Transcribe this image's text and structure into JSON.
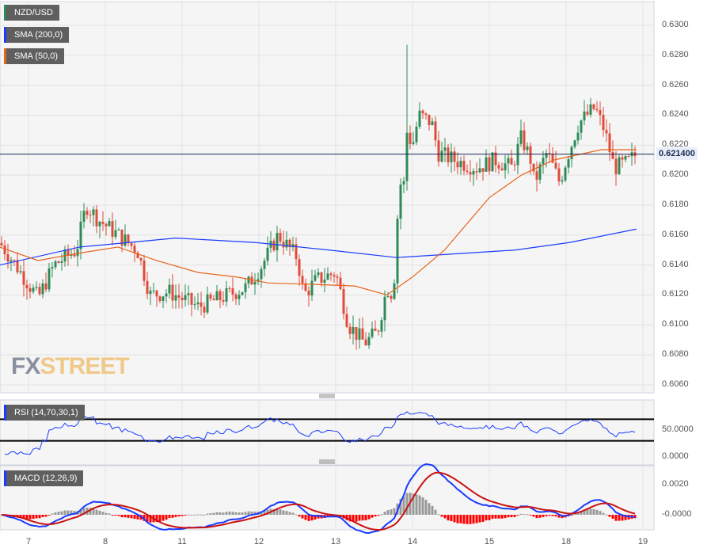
{
  "legend": {
    "pair": "NZD/USD",
    "sma200": "SMA (200,0)",
    "sma50": "SMA (50,0)",
    "rsi": "RSI (14,70,30,1)",
    "macd": "MACD (12,26,9)"
  },
  "colors": {
    "pair": "#2e8b57",
    "sma200": "#1a3cff",
    "sma50": "#e8641b",
    "up": "#2e8b57",
    "down": "#e04b3a",
    "macd_line": "#1a3cff",
    "signal_line": "#cc1111",
    "hist_pos": "#999999",
    "hist_neg": "#ff0000"
  },
  "logo": {
    "fx": "FX",
    "street": "STREET"
  },
  "last_price": "0.621400",
  "chart_data": [
    {
      "type": "candlestick",
      "title": "NZD/USD",
      "ylim": [
        0.6055,
        0.6305
      ],
      "yticks": [
        "0.6300",
        "0.6280",
        "0.6260",
        "0.6240",
        "0.6220",
        "0.6200",
        "0.6180",
        "0.6160",
        "0.6140",
        "0.6120",
        "0.6100",
        "0.6080",
        "0.6060"
      ],
      "xticks": [
        "7",
        "8",
        "11",
        "12",
        "13",
        "14",
        "15",
        "18",
        "19"
      ],
      "close_path": [
        [
          "6 15:00",
          0.6155
        ],
        [
          "6 20:00",
          0.614
        ],
        [
          "7 03:00",
          0.6118
        ],
        [
          "7 08:00",
          0.614
        ],
        [
          "7 15:00",
          0.615
        ],
        [
          "7 18:00",
          0.618
        ],
        [
          "7 22:00",
          0.617
        ],
        [
          "8 04:00",
          0.616
        ],
        [
          "8 10:00",
          0.615
        ],
        [
          "8 14:00",
          0.612
        ],
        [
          "8 20:00",
          0.6122
        ],
        [
          "11 05:00",
          0.6112
        ],
        [
          "11 12:00",
          0.6118
        ],
        [
          "11 20:00",
          0.6125
        ],
        [
          "12 01:00",
          0.614
        ],
        [
          "12 06:00",
          0.616
        ],
        [
          "12 12:00",
          0.6145
        ],
        [
          "12 14:00",
          0.612
        ],
        [
          "12 18:00",
          0.613
        ],
        [
          "13 00:00",
          0.6135
        ],
        [
          "13 04:00",
          0.61
        ],
        [
          "13 09:00",
          0.6088
        ],
        [
          "13 13:00",
          0.6095
        ],
        [
          "13 16:00",
          0.6125
        ],
        [
          "13 18:00",
          0.612
        ],
        [
          "13 20:00",
          0.62
        ],
        [
          "13 21:00",
          0.618
        ],
        [
          "13 22:00",
          0.623
        ],
        [
          "14 00:00",
          0.622
        ],
        [
          "14 02:00",
          0.624
        ],
        [
          "14 06:00",
          0.6235
        ],
        [
          "14 08:00",
          0.6215
        ],
        [
          "14 13:00",
          0.621
        ],
        [
          "14 20:00",
          0.6205
        ],
        [
          "15 02:00",
          0.621
        ],
        [
          "15 07:00",
          0.6205
        ],
        [
          "15 10:00",
          0.6225
        ],
        [
          "15 13:00",
          0.621
        ],
        [
          "15 14:00",
          0.6195
        ],
        [
          "15 18:00",
          0.6215
        ],
        [
          "15 22:00",
          0.6195
        ],
        [
          "18 00:00",
          0.621
        ],
        [
          "18 04:00",
          0.6235
        ],
        [
          "18 09:00",
          0.6245
        ],
        [
          "18 12:00",
          0.623
        ],
        [
          "18 15:00",
          0.6205
        ],
        [
          "18 19:00",
          0.6208
        ],
        [
          "18 22:00",
          0.6214
        ]
      ],
      "spike_high": [
        "13 22:00",
        0.6287
      ],
      "sma200": [
        [
          "6 15:00",
          0.614
        ],
        [
          "7 16:00",
          0.6152
        ],
        [
          "8 22:00",
          0.6158
        ],
        [
          "11 23:00",
          0.6155
        ],
        [
          "12 22:00",
          0.615
        ],
        [
          "13 19:00",
          0.6145
        ],
        [
          "14 10:00",
          0.6147
        ],
        [
          "15 08:00",
          0.615
        ],
        [
          "18 01:00",
          0.6155
        ],
        [
          "18 22:00",
          0.6164
        ]
      ],
      "sma50": [
        [
          "6 15:00",
          0.6152
        ],
        [
          "7 03:00",
          0.6143
        ],
        [
          "7 16:00",
          0.6148
        ],
        [
          "8 04:00",
          0.6152
        ],
        [
          "8 16:00",
          0.6143
        ],
        [
          "11 05:00",
          0.6135
        ],
        [
          "11 17:00",
          0.6132
        ],
        [
          "12 03:00",
          0.6128
        ],
        [
          "12 18:00",
          0.6127
        ],
        [
          "13 06:00",
          0.6126
        ],
        [
          "13 16:00",
          0.612
        ],
        [
          "14 00:00",
          0.6132
        ],
        [
          "14 10:00",
          0.615
        ],
        [
          "15 00:00",
          0.6185
        ],
        [
          "15 10:00",
          0.62
        ],
        [
          "15 20:00",
          0.621
        ],
        [
          "18 11:00",
          0.6217
        ],
        [
          "18 22:00",
          0.6217
        ]
      ]
    },
    {
      "type": "line",
      "title": "RSI (14,70,30,1)",
      "ylim": [
        0,
        100
      ],
      "yticks": [
        "50.0000",
        "0.0000"
      ],
      "levels": [
        70,
        30
      ]
    },
    {
      "type": "bar+line",
      "title": "MACD (12,26,9)",
      "yticks": [
        "0.0020",
        "-0.0000"
      ]
    }
  ]
}
